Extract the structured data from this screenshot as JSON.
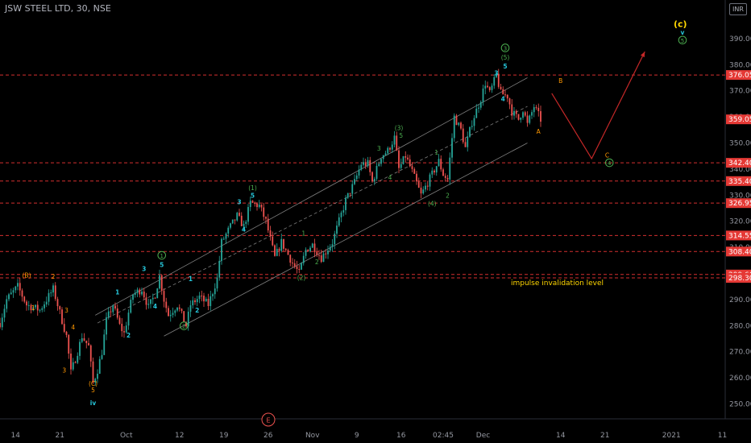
{
  "title": "JSW STEEL LTD, 30, NSE",
  "currency": "INR",
  "colors": {
    "background": "#000000",
    "up": "#26a69a",
    "down": "#ef5350",
    "level_line": "#d32f2f",
    "label_badge": "#e53935",
    "wave_cyan": "#26c6da",
    "wave_green": "#4caf50",
    "wave_orange": "#ff9800",
    "wave_yellow": "#ffd600",
    "projection": "#c62828",
    "channel": "#9e9e9e"
  },
  "chart_data": {
    "type": "candlestick",
    "title": "JSW STEEL LTD, 30, NSE",
    "ylim": [
      243,
      396
    ],
    "y_ticks": [
      250,
      260,
      270,
      280,
      290,
      300,
      310,
      320,
      330,
      340,
      350,
      360,
      370,
      380,
      390
    ],
    "y_tick_labels": [
      "250.00",
      "260.00",
      "270.00",
      "280.00",
      "290.00",
      "300.00",
      "310.00",
      "320.00",
      "330.00",
      "340.00",
      "350.00",
      "360.00",
      "370.00",
      "380.00",
      "390.00"
    ],
    "x_ticks": [
      {
        "label": "14",
        "i": 7
      },
      {
        "label": "21",
        "i": 27
      },
      {
        "label": "Oct",
        "i": 57
      },
      {
        "label": "12",
        "i": 81
      },
      {
        "label": "19",
        "i": 101
      },
      {
        "label": "26",
        "i": 121
      },
      {
        "label": "Nov",
        "i": 141
      },
      {
        "label": "9",
        "i": 161
      },
      {
        "label": "16",
        "i": 181
      },
      {
        "label": "02:45",
        "i": 200
      },
      {
        "label": "Dec",
        "i": 218
      },
      {
        "label": "14",
        "i": 253
      },
      {
        "label": "21",
        "i": 273
      },
      {
        "label": "2021",
        "i": 303
      },
      {
        "label": "11",
        "i": 326
      }
    ],
    "path": [
      [
        0,
        281
      ],
      [
        3,
        290
      ],
      [
        8,
        295
      ],
      [
        12,
        288
      ],
      [
        18,
        286
      ],
      [
        24,
        294
      ],
      [
        26,
        288
      ],
      [
        30,
        276
      ],
      [
        32,
        262
      ],
      [
        35,
        270
      ],
      [
        37,
        276
      ],
      [
        40,
        272
      ],
      [
        42,
        258
      ],
      [
        44,
        263
      ],
      [
        46,
        270
      ],
      [
        48,
        282
      ],
      [
        51,
        288
      ],
      [
        54,
        280
      ],
      [
        56,
        277
      ],
      [
        58,
        285
      ],
      [
        60,
        292
      ],
      [
        64,
        294
      ],
      [
        67,
        287
      ],
      [
        70,
        292
      ],
      [
        72,
        299
      ],
      [
        74,
        290
      ],
      [
        76,
        284
      ],
      [
        80,
        288
      ],
      [
        84,
        280
      ],
      [
        86,
        288
      ],
      [
        90,
        291
      ],
      [
        94,
        288
      ],
      [
        98,
        298
      ],
      [
        100,
        312
      ],
      [
        104,
        318
      ],
      [
        107,
        322
      ],
      [
        110,
        318
      ],
      [
        113,
        327
      ],
      [
        117,
        326
      ],
      [
        120,
        320
      ],
      [
        122,
        313
      ],
      [
        124,
        306
      ],
      [
        127,
        312
      ],
      [
        132,
        304
      ],
      [
        135,
        300
      ],
      [
        138,
        309
      ],
      [
        141,
        311
      ],
      [
        145,
        306
      ],
      [
        150,
        312
      ],
      [
        153,
        320
      ],
      [
        156,
        328
      ],
      [
        160,
        335
      ],
      [
        163,
        342
      ],
      [
        166,
        342
      ],
      [
        168,
        335
      ],
      [
        170,
        340
      ],
      [
        172,
        345
      ],
      [
        175,
        347
      ],
      [
        178,
        352
      ],
      [
        180,
        340
      ],
      [
        183,
        345
      ],
      [
        186,
        339
      ],
      [
        190,
        330
      ],
      [
        195,
        338
      ],
      [
        198,
        343
      ],
      [
        200,
        338
      ],
      [
        202,
        336
      ],
      [
        205,
        360
      ],
      [
        208,
        355
      ],
      [
        210,
        348
      ],
      [
        213,
        358
      ],
      [
        217,
        367
      ],
      [
        219,
        373
      ],
      [
        221,
        369
      ],
      [
        224,
        376
      ],
      [
        226,
        369
      ],
      [
        229,
        368
      ],
      [
        231,
        362
      ],
      [
        234,
        359
      ],
      [
        236,
        363
      ],
      [
        238,
        357
      ],
      [
        241,
        364
      ],
      [
        244,
        359
      ]
    ],
    "last_price": "359.05",
    "levels": [
      {
        "value": 376.05,
        "label": "376.05"
      },
      {
        "value": 342.4,
        "label": "342.40"
      },
      {
        "value": 335.4,
        "label": "335.40"
      },
      {
        "value": 326.95,
        "label": "326.95"
      },
      {
        "value": 314.55,
        "label": "314.55"
      },
      {
        "value": 308.4,
        "label": "308.40"
      },
      {
        "value": 299.6,
        "label": "299.60"
      },
      {
        "value": 298.3,
        "label": "298.30"
      }
    ],
    "channel": [
      {
        "x1": 43,
        "y1": 284,
        "x2": 238,
        "y2": 375
      },
      {
        "x1": 74,
        "y1": 276,
        "x2": 238,
        "y2": 350
      },
      {
        "x1": 44,
        "y1": 281,
        "x2": 238,
        "y2": 364
      }
    ],
    "projection": [
      [
        249,
        369
      ],
      [
        267,
        344
      ],
      [
        291,
        385
      ]
    ],
    "wave_labels": [
      {
        "text": "(B)",
        "i": 12,
        "v": 298.5,
        "color": "orange"
      },
      {
        "text": "1",
        "i": 15,
        "v": 286,
        "color": "orange"
      },
      {
        "text": "2",
        "i": 24,
        "v": 298,
        "color": "orange"
      },
      {
        "text": "3",
        "i": 30,
        "v": 285,
        "color": "orange"
      },
      {
        "text": "4",
        "i": 33,
        "v": 278.5,
        "color": "orange"
      },
      {
        "text": "3",
        "i": 29,
        "v": 262,
        "color": "orange"
      },
      {
        "text": "5",
        "i": 42,
        "v": 254.5,
        "color": "orange"
      },
      {
        "text": "(C)",
        "i": 42,
        "v": 257,
        "color": "orange"
      },
      {
        "text": "iv",
        "i": 42,
        "v": 249.5,
        "color": "cyan"
      },
      {
        "text": "1",
        "i": 53,
        "v": 292,
        "color": "cyan"
      },
      {
        "text": "2",
        "i": 58,
        "v": 275.5,
        "color": "cyan"
      },
      {
        "text": "3",
        "i": 65,
        "v": 301,
        "color": "cyan"
      },
      {
        "text": "4",
        "i": 70,
        "v": 286.5,
        "color": "cyan"
      },
      {
        "text": "5",
        "i": 73,
        "v": 302.5,
        "color": "cyan"
      },
      {
        "text": "1",
        "i": 73,
        "v": 306,
        "color": "green",
        "circle": true
      },
      {
        "text": "1",
        "i": 86,
        "v": 297,
        "color": "cyan"
      },
      {
        "text": "2",
        "i": 89,
        "v": 285,
        "color": "cyan"
      },
      {
        "text": "2",
        "i": 83,
        "v": 279,
        "color": "green",
        "circle": true
      },
      {
        "text": "3",
        "i": 108,
        "v": 326.5,
        "color": "cyan"
      },
      {
        "text": "4",
        "i": 110,
        "v": 316,
        "color": "cyan"
      },
      {
        "text": "5",
        "i": 114,
        "v": 329,
        "color": "cyan"
      },
      {
        "text": "(1)",
        "i": 114,
        "v": 332,
        "color": "green"
      },
      {
        "text": "1",
        "i": 137,
        "v": 314.5,
        "color": "green"
      },
      {
        "text": "2",
        "i": 143,
        "v": 303.5,
        "color": "green"
      },
      {
        "text": "(2)",
        "i": 136,
        "v": 297.5,
        "color": "green"
      },
      {
        "text": "3",
        "i": 171,
        "v": 347,
        "color": "green"
      },
      {
        "text": "4",
        "i": 176,
        "v": 336,
        "color": "green"
      },
      {
        "text": "5",
        "i": 181,
        "v": 352,
        "color": "green"
      },
      {
        "text": "(3)",
        "i": 180,
        "v": 355,
        "color": "green"
      },
      {
        "text": "1",
        "i": 197,
        "v": 345.5,
        "color": "green"
      },
      {
        "text": "2",
        "i": 202,
        "v": 329,
        "color": "green"
      },
      {
        "text": "(4)",
        "i": 195,
        "v": 326,
        "color": "green"
      },
      {
        "text": "3",
        "i": 224,
        "v": 376,
        "color": "cyan"
      },
      {
        "text": "4",
        "i": 227,
        "v": 366,
        "color": "cyan"
      },
      {
        "text": "5",
        "i": 228,
        "v": 378.5,
        "color": "cyan"
      },
      {
        "text": "(5)",
        "i": 228,
        "v": 382,
        "color": "green"
      },
      {
        "text": "3",
        "i": 228,
        "v": 385.5,
        "color": "green",
        "circle": true
      },
      {
        "text": "A",
        "i": 243,
        "v": 353.5,
        "color": "orange"
      },
      {
        "text": "B",
        "i": 253,
        "v": 373,
        "color": "orange"
      },
      {
        "text": "C",
        "i": 274,
        "v": 344.5,
        "color": "orange"
      },
      {
        "text": "4",
        "i": 275,
        "v": 341.5,
        "color": "green",
        "circle": true
      },
      {
        "text": "v",
        "i": 308,
        "v": 391.5,
        "color": "cyan"
      },
      {
        "text": "5",
        "i": 308,
        "v": 388.5,
        "color": "green",
        "circle": true
      },
      {
        "text": "(c)",
        "i": 307,
        "v": 394.5,
        "color": "yellow"
      }
    ],
    "annotation": "impulse invalidation level",
    "marker": "E"
  }
}
